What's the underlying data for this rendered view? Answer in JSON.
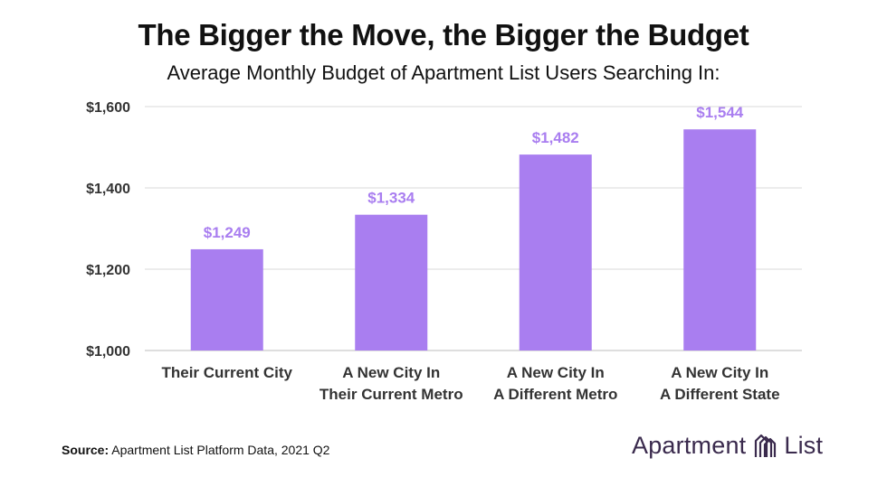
{
  "chart_data": {
    "type": "bar",
    "title": "The Bigger the Move, the Bigger the Budget",
    "subtitle": "Average Monthly Budget of Apartment List Users Searching In:",
    "categories": [
      [
        "Their Current City"
      ],
      [
        "A New City In",
        "Their Current Metro"
      ],
      [
        "A New City In",
        "A Different Metro"
      ],
      [
        "A New City In",
        "A Different State"
      ]
    ],
    "values": [
      1249,
      1334,
      1482,
      1544
    ],
    "data_labels": [
      "$1,249",
      "$1,334",
      "$1,482",
      "$1,544"
    ],
    "ylim": [
      1000,
      1600
    ],
    "yticks": [
      1000,
      1200,
      1400,
      1600
    ],
    "ytick_labels": [
      "$1,000",
      "$1,200",
      "$1,400",
      "$1,600"
    ],
    "xlabel": "",
    "ylabel": "",
    "grid": true,
    "bar_color": "#a97ef0",
    "label_color": "#a97ef0"
  },
  "source": {
    "label": "Source:",
    "text": " Apartment List Platform Data, 2021 Q2"
  },
  "logo": {
    "word1": "Apartment",
    "word2": "List",
    "icon": "apartment-list-logo-icon"
  }
}
